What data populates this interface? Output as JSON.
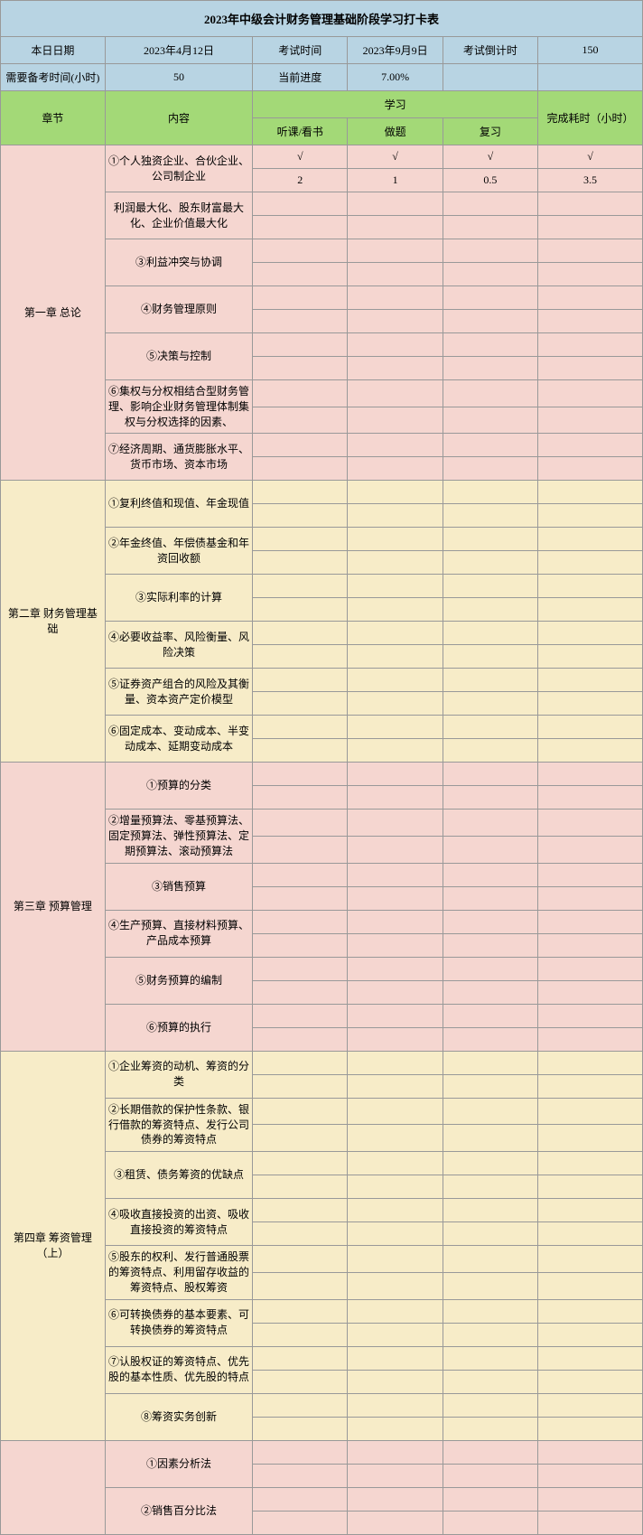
{
  "title": "2023年中级会计财务管理基础阶段学习打卡表",
  "info": {
    "today_label": "本日日期",
    "today_value": "2023年4月12日",
    "exam_label": "考试时间",
    "exam_value": "2023年9月9日",
    "countdown_label": "考试倒计时",
    "countdown_value": "150",
    "hours_label": "需要备考时间(小时)",
    "hours_value": "50",
    "progress_label": "当前进度",
    "progress_value": "7.00%"
  },
  "headers": {
    "chapter": "章节",
    "content": "内容",
    "study": "学习",
    "listen": "听课/看书",
    "practice": "做题",
    "review": "复习",
    "time": "完成耗时（小时）"
  },
  "check": "√",
  "chapters": [
    {
      "name": "第一章 总论",
      "color": "pink",
      "items": [
        {
          "text": "①个人独资企业、合伙企业、公司制企业",
          "listen_check": "√",
          "practice_check": "√",
          "review_check": "√",
          "time_check": "√",
          "listen_val": "2",
          "practice_val": "1",
          "review_val": "0.5",
          "time_val": "3.5"
        },
        {
          "text": "利润最大化、股东财富最大化、企业价值最大化"
        },
        {
          "text": "③利益冲突与协调"
        },
        {
          "text": "④财务管理原则"
        },
        {
          "text": "⑤决策与控制"
        },
        {
          "text": "⑥集权与分权相结合型财务管理、影响企业财务管理体制集权与分权选择的因素、"
        },
        {
          "text": "⑦经济周期、通货膨胀水平、货币市场、资本市场"
        }
      ]
    },
    {
      "name": "第二章 财务管理基础",
      "color": "yellow",
      "items": [
        {
          "text": "①复利终值和现值、年金现值"
        },
        {
          "text": "②年金终值、年偿债基金和年资回收额"
        },
        {
          "text": "③实际利率的计算"
        },
        {
          "text": "④必要收益率、风险衡量、风险决策"
        },
        {
          "text": "⑤证券资产组合的风险及其衡量、资本资产定价模型"
        },
        {
          "text": "⑥固定成本、变动成本、半变动成本、延期变动成本"
        }
      ]
    },
    {
      "name": "第三章 预算管理",
      "color": "pink",
      "items": [
        {
          "text": "①预算的分类"
        },
        {
          "text": "②增量预算法、零基预算法、固定预算法、弹性预算法、定期预算法、滚动预算法"
        },
        {
          "text": "③销售预算"
        },
        {
          "text": "④生产预算、直接材料预算、产品成本预算"
        },
        {
          "text": "⑤财务预算的编制"
        },
        {
          "text": "⑥预算的执行"
        }
      ]
    },
    {
      "name": "第四章 筹资管理（上）",
      "color": "yellow",
      "items": [
        {
          "text": "①企业筹资的动机、筹资的分类"
        },
        {
          "text": "②长期借款的保护性条款、银行借款的筹资特点、发行公司债券的筹资特点"
        },
        {
          "text": "③租赁、债务筹资的优缺点"
        },
        {
          "text": "④吸收直接投资的出资、吸收直接投资的筹资特点"
        },
        {
          "text": "⑤股东的权利、发行普通股票的筹资特点、利用留存收益的筹资特点、股权筹资"
        },
        {
          "text": "⑥可转换债券的基本要素、可转换债券的筹资特点"
        },
        {
          "text": "⑦认股权证的筹资特点、优先股的基本性质、优先股的特点"
        },
        {
          "text": "⑧筹资实务创新"
        }
      ]
    },
    {
      "name": "",
      "color": "pink",
      "partial": true,
      "items": [
        {
          "text": "①因素分析法"
        },
        {
          "text": "②销售百分比法"
        }
      ]
    }
  ]
}
